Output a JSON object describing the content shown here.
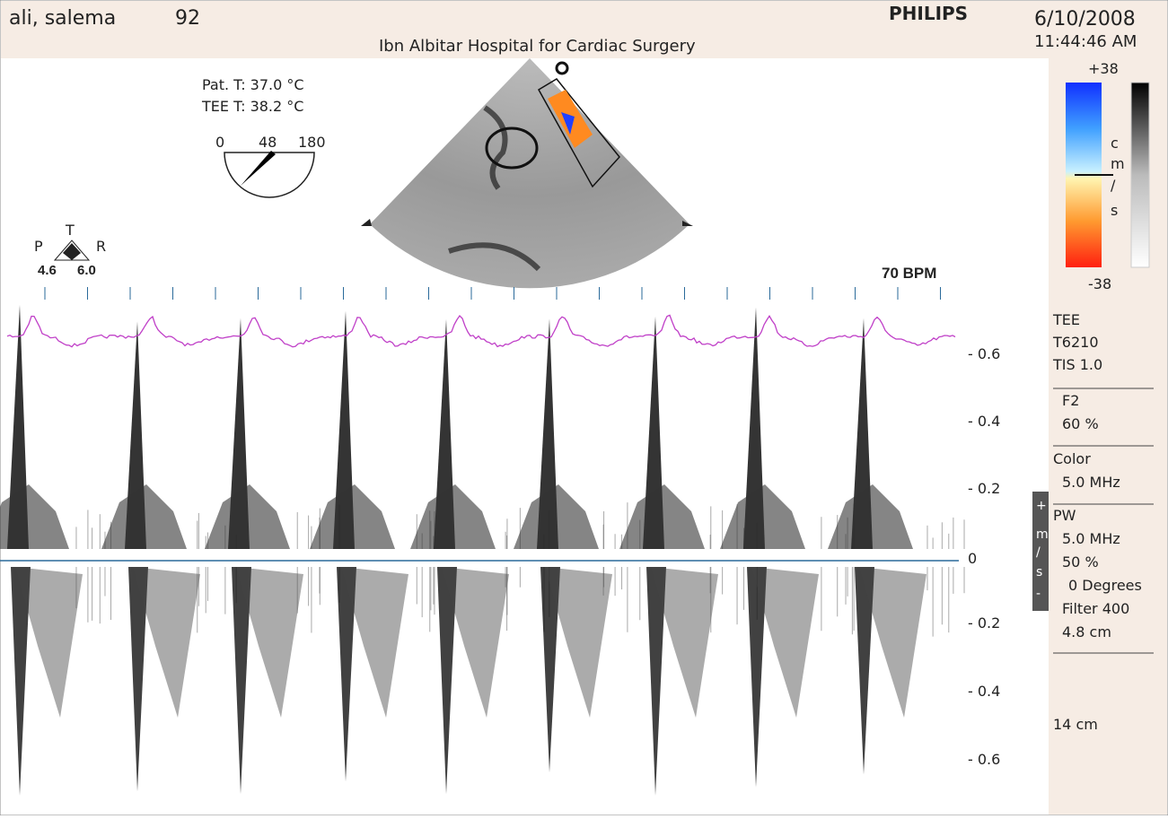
{
  "header": {
    "patient_name": "ali, salema",
    "patient_age": "92",
    "brand": "PHILIPS",
    "date": "6/10/2008",
    "time": "11:44:46 AM",
    "hospital": "Ibn Albitar Hospital for Cardiac Surgery"
  },
  "temperatures": [
    "Pat. T: 37.0 °C",
    "TEE T: 38.2 °C"
  ],
  "angle": {
    "min": "0",
    "value": "48",
    "max": "180"
  },
  "orientation": {
    "top": "T",
    "left": "P",
    "right": "R",
    "left_value": "4.6",
    "right_value": "6.0"
  },
  "heart_rate": "70 BPM",
  "color_scale": {
    "max": "+38",
    "min": "-38",
    "unit": [
      "c",
      "m",
      "/",
      "s"
    ]
  },
  "settings": [
    [
      "TEE",
      "T6210",
      "TIS 1.0"
    ],
    [
      "F2",
      "60 %"
    ],
    [
      "Color",
      "5.0 MHz"
    ],
    [
      "PW",
      "5.0 MHz",
      "50 %",
      "0 Degrees",
      "Filter 400",
      "4.8 cm"
    ]
  ],
  "depth": "14 cm",
  "velocity_scale": [
    "- 0.6",
    "- 0.4",
    "- 0.2",
    "0",
    "- 0.2",
    "- 0.4",
    "- 0.6"
  ],
  "side_tab": [
    "+",
    "m",
    "/",
    "s",
    "-"
  ]
}
